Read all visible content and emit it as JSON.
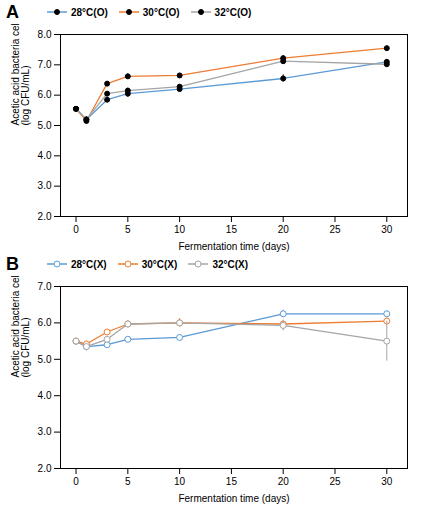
{
  "chart_data": [
    {
      "type": "line",
      "title": "A",
      "x": [
        0,
        1,
        3,
        5,
        10,
        20,
        30
      ],
      "series": [
        {
          "name": "28°C(O)",
          "color": "#5b9bd5",
          "values": [
            5.55,
            5.2,
            5.85,
            6.05,
            6.2,
            6.55,
            7.1
          ],
          "yerr": [
            0.05,
            0.08,
            0.05,
            0.12,
            0.07,
            0.12,
            0.07
          ]
        },
        {
          "name": "30°C(O)",
          "color": "#ed7d31",
          "values": [
            5.55,
            5.15,
            6.38,
            6.62,
            6.65,
            7.22,
            7.55
          ],
          "yerr": [
            0.05,
            0.07,
            0.06,
            0.08,
            0.07,
            0.08,
            0.07
          ]
        },
        {
          "name": "32°C(O)",
          "color": "#a5a5a5",
          "values": [
            5.55,
            5.2,
            6.05,
            6.15,
            6.28,
            7.12,
            7.02
          ],
          "yerr": [
            0.05,
            0.07,
            0.06,
            0.08,
            0.07,
            0.1,
            0.06
          ]
        }
      ],
      "xlabel": "Fermentation time (days)",
      "ylabel": "Acetic acid bacteria cell counts\n(log CFU/mL)",
      "xlim": [
        -1.5,
        32
      ],
      "xticks": [
        0,
        5,
        10,
        15,
        20,
        25,
        30
      ],
      "ylim": [
        2.0,
        8.0
      ],
      "yticks": [
        2,
        3,
        4,
        5,
        6,
        7,
        8
      ],
      "marker": "filled",
      "legend": "top",
      "grid": false
    },
    {
      "type": "line",
      "title": "B",
      "x": [
        0,
        1,
        3,
        5,
        10,
        20,
        30
      ],
      "series": [
        {
          "name": "28°C(X)",
          "color": "#5b9bd5",
          "values": [
            5.5,
            5.35,
            5.4,
            5.55,
            5.6,
            6.25,
            6.25
          ],
          "yerr": [
            0.05,
            0.12,
            0.06,
            0.06,
            0.07,
            0.1,
            0.08
          ]
        },
        {
          "name": "30°C(X)",
          "color": "#ed7d31",
          "values": [
            5.5,
            5.42,
            5.75,
            5.97,
            6.0,
            5.97,
            6.05
          ],
          "yerr": [
            0.05,
            0.08,
            0.06,
            0.1,
            0.12,
            0.08,
            0.08
          ]
        },
        {
          "name": "32°C(X)",
          "color": "#a5a5a5",
          "values": [
            5.5,
            5.35,
            5.55,
            5.97,
            6.0,
            5.93,
            5.5
          ],
          "yerr": [
            0.05,
            0.07,
            0.06,
            0.08,
            0.07,
            0.15,
            0.55
          ]
        }
      ],
      "xlabel": "Fermentation time (days)",
      "ylabel": "Acetic acid bacteria cell counts\n(log CFU/mL)",
      "xlim": [
        -1.5,
        32
      ],
      "xticks": [
        0,
        5,
        10,
        15,
        20,
        25,
        30
      ],
      "ylim": [
        2.0,
        7.0
      ],
      "yticks": [
        2,
        3,
        4,
        5,
        6,
        7
      ],
      "marker": "open",
      "legend": "top",
      "grid": false
    }
  ]
}
